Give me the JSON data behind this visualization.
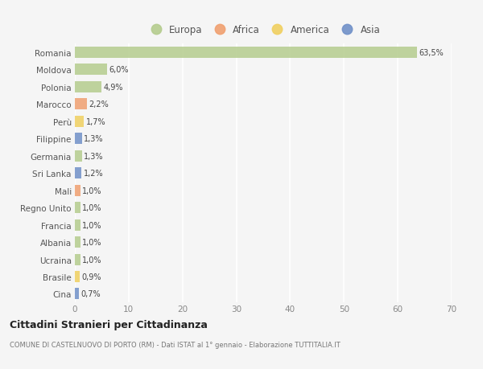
{
  "countries": [
    "Romania",
    "Moldova",
    "Polonia",
    "Marocco",
    "Perù",
    "Filippine",
    "Germania",
    "Sri Lanka",
    "Mali",
    "Regno Unito",
    "Francia",
    "Albania",
    "Ucraina",
    "Brasile",
    "Cina"
  ],
  "values": [
    63.5,
    6.0,
    4.9,
    2.2,
    1.7,
    1.3,
    1.3,
    1.2,
    1.0,
    1.0,
    1.0,
    1.0,
    1.0,
    0.9,
    0.7
  ],
  "labels": [
    "63,5%",
    "6,0%",
    "4,9%",
    "2,2%",
    "1,7%",
    "1,3%",
    "1,3%",
    "1,2%",
    "1,0%",
    "1,0%",
    "1,0%",
    "1,0%",
    "1,0%",
    "0,9%",
    "0,7%"
  ],
  "continents": [
    "Europa",
    "Europa",
    "Europa",
    "Africa",
    "America",
    "Asia",
    "Europa",
    "Asia",
    "Africa",
    "Europa",
    "Europa",
    "Europa",
    "Europa",
    "America",
    "Asia"
  ],
  "colors": {
    "Europa": "#b5cc8e",
    "Africa": "#f0a070",
    "America": "#f0d060",
    "Asia": "#7090c8"
  },
  "xlim": [
    0,
    70
  ],
  "xticks": [
    0,
    10,
    20,
    30,
    40,
    50,
    60,
    70
  ],
  "title": "Cittadini Stranieri per Cittadinanza",
  "subtitle": "COMUNE DI CASTELNUOVO DI PORTO (RM) - Dati ISTAT al 1° gennaio - Elaborazione TUTTITALIA.IT",
  "bg_color": "#f5f5f5",
  "grid_color": "#ffffff",
  "bar_height": 0.65,
  "legend_order": [
    "Europa",
    "Africa",
    "America",
    "Asia"
  ]
}
